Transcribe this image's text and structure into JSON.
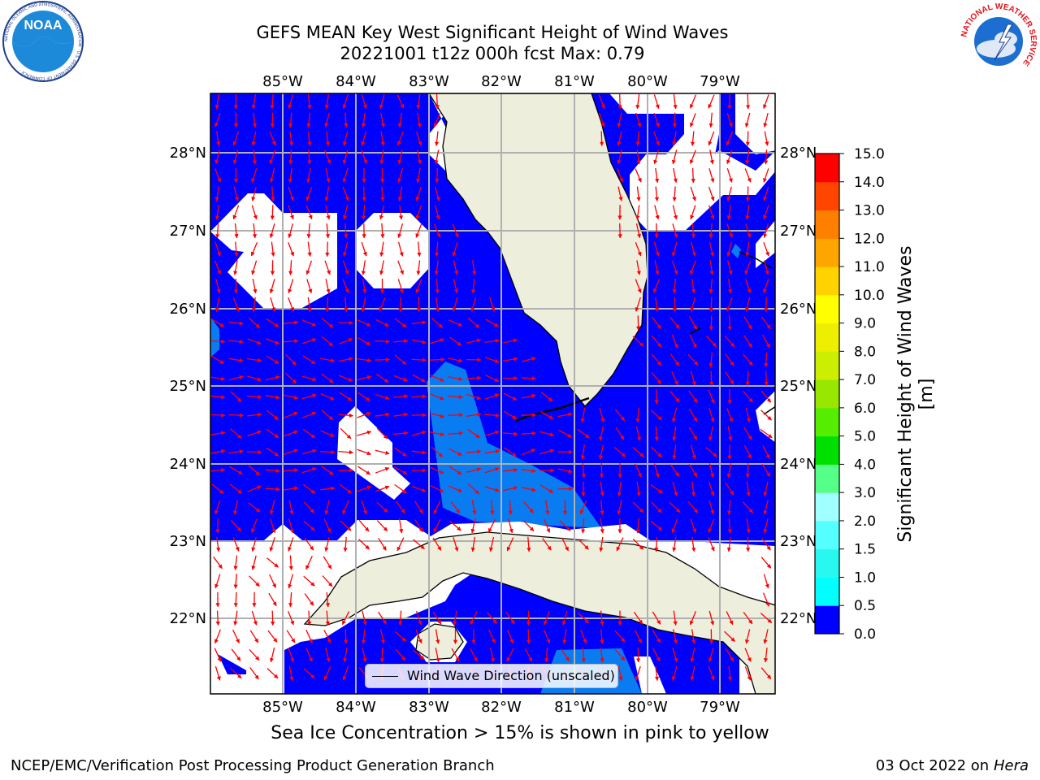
{
  "header": {
    "title_line1": "GEFS MEAN Key West Significant Height of Wind Waves",
    "title_line2": "20221001 t12z 000h fcst   Max: 0.79"
  },
  "logos": {
    "noaa": "NOAA",
    "noaa_ring": "NATIONAL OCEANIC AND ATMOSPHERIC ADMINISTRATION · U.S. DEPARTMENT OF COMMERCE ·",
    "nws_ring": "NATIONAL WEATHER SERVICE"
  },
  "map": {
    "lon_labels": [
      "85°W",
      "84°W",
      "83°W",
      "82°W",
      "81°W",
      "80°W",
      "79°W"
    ],
    "lat_labels": [
      "28°N",
      "27°N",
      "26°N",
      "25°N",
      "24°N",
      "23°N",
      "22°N"
    ],
    "legend_label": "Wind Wave Direction (unscaled)",
    "colors": {
      "water_low": "#0000ff",
      "water_mid": "#0a7cf2",
      "land": "#eeeedd",
      "arrows": "#ff0000",
      "grid": "#b0b0b0"
    }
  },
  "colorbar": {
    "label": "Significant Height of Wind Waves [m]",
    "ticks": [
      "0.0",
      "0.5",
      "1.0",
      "1.5",
      "2.0",
      "3.0",
      "4.0",
      "5.0",
      "6.0",
      "7.0",
      "8.0",
      "9.0",
      "10.0",
      "11.0",
      "12.0",
      "13.0",
      "14.0",
      "15.0"
    ],
    "colors": [
      "#0000ff",
      "#0a7cf2",
      "#00ffff",
      "#28f8f0",
      "#55ffff",
      "#a0ffff",
      "#55ff88",
      "#00e000",
      "#55ee00",
      "#99e600",
      "#ccee00",
      "#eeee00",
      "#ffff00",
      "#ffd200",
      "#ffa500",
      "#ff7f00",
      "#ff4500",
      "#ff0000"
    ]
  },
  "notes": {
    "sea_ice": "Sea Ice Concentration > 15% is shown in pink to yellow"
  },
  "footer": {
    "left": "NCEP/EMC/Verification Post Processing Product Generation Branch",
    "right_date": "03 Oct 2022 on ",
    "right_host": "Hera"
  }
}
